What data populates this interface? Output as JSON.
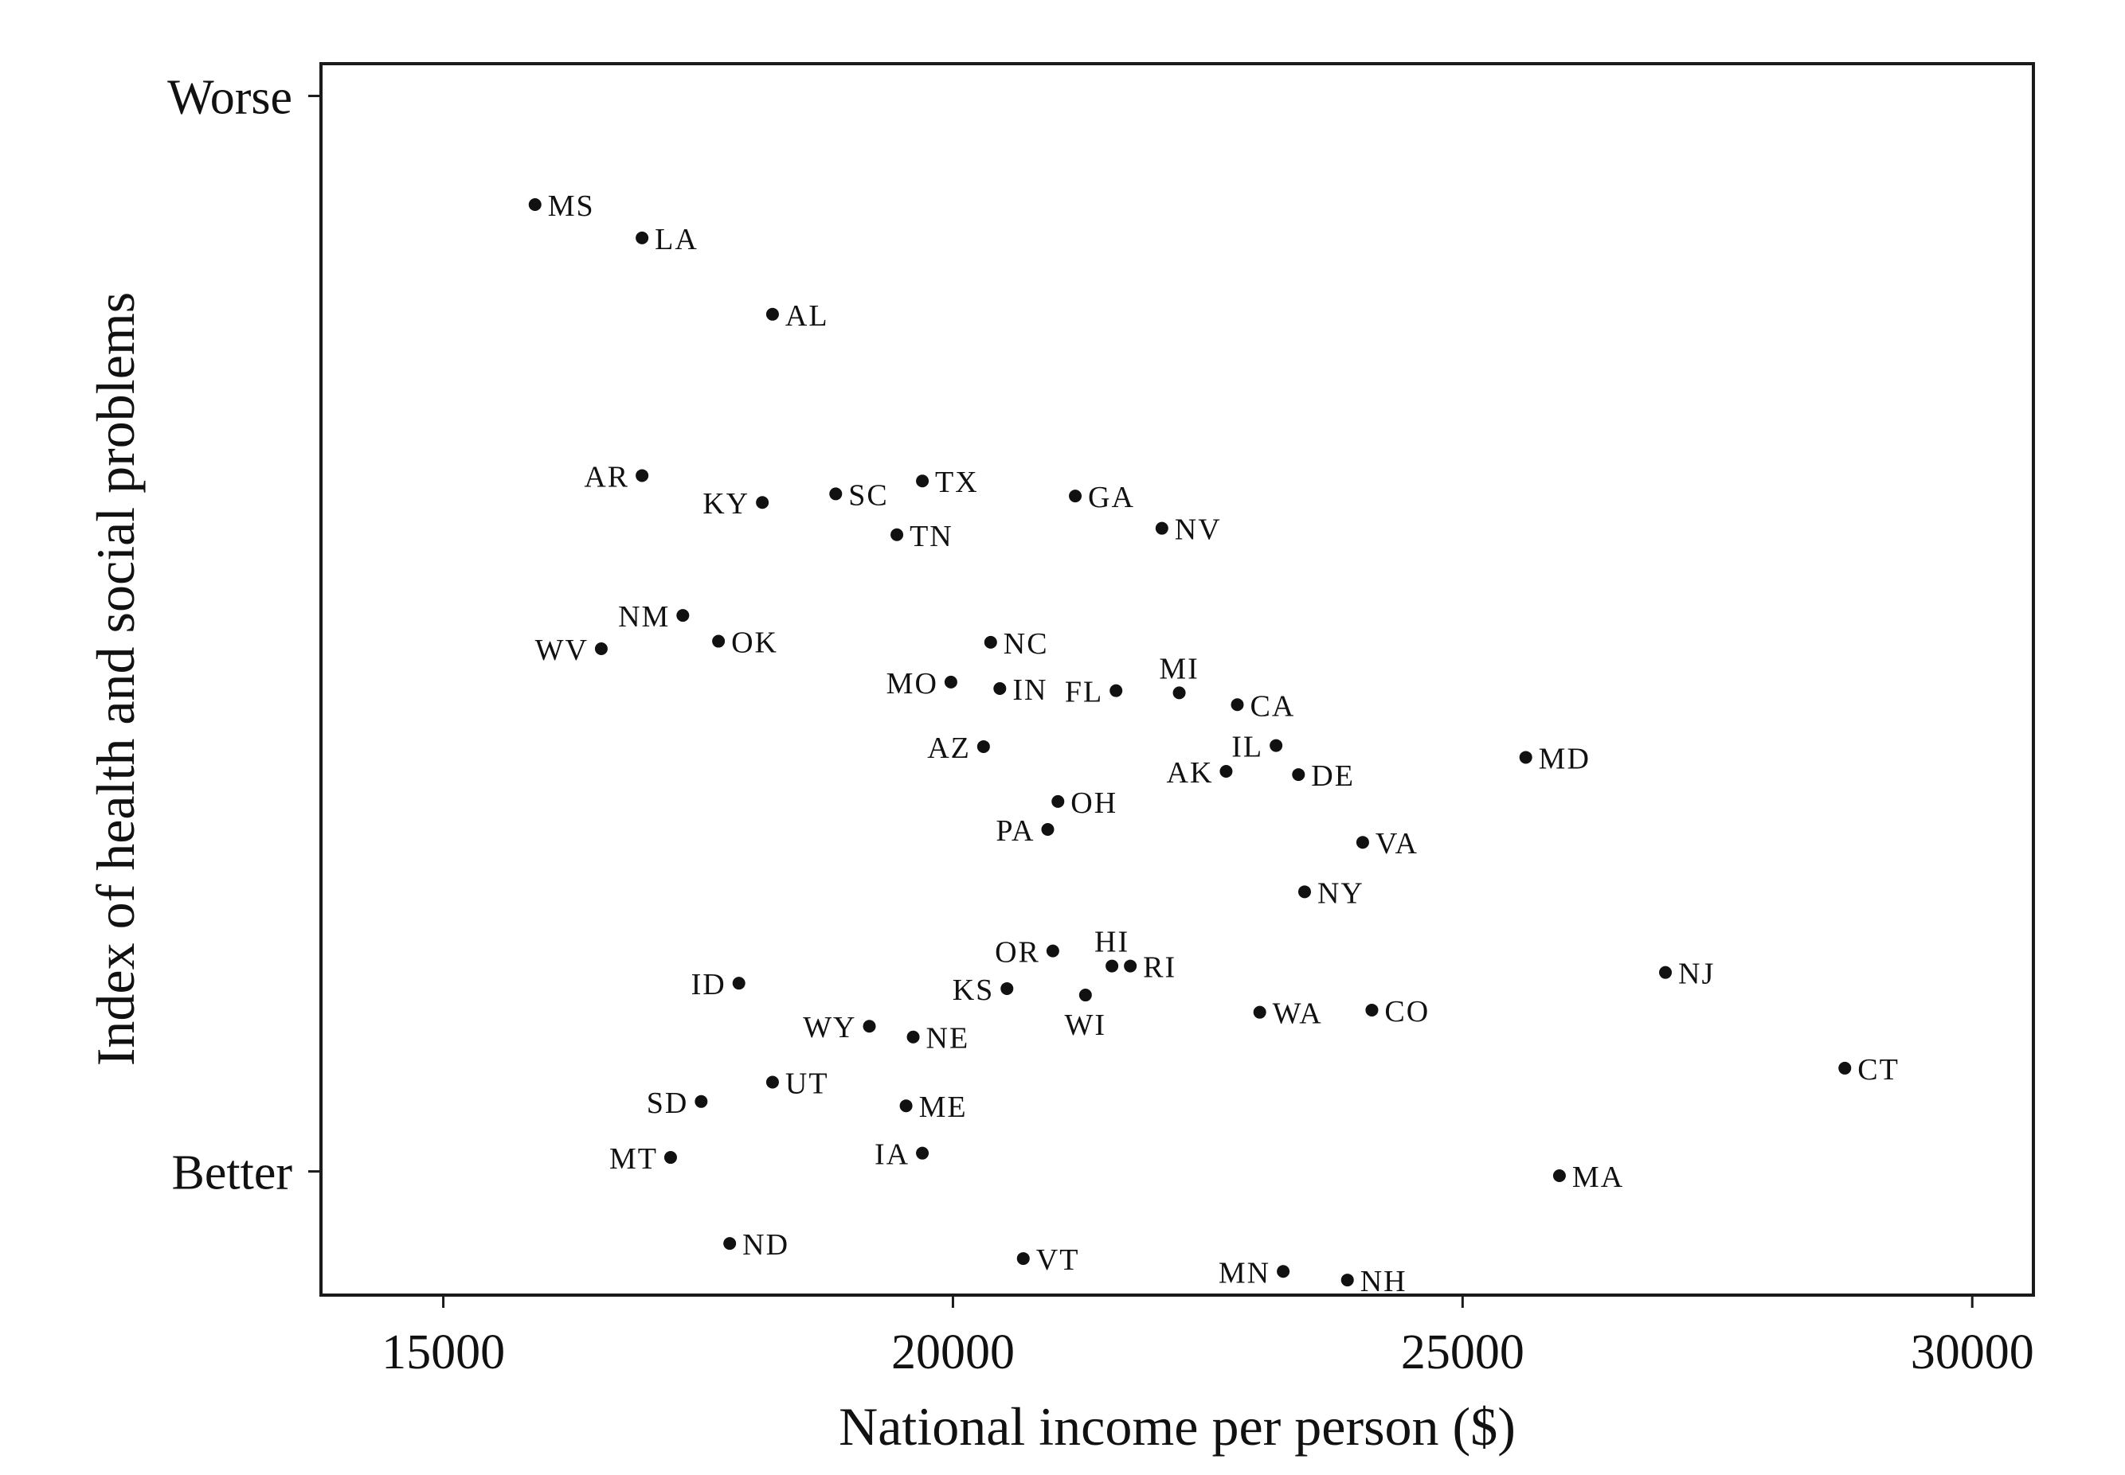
{
  "chart_data": {
    "type": "scatter",
    "xlabel": "National income per person ($)",
    "ylabel": "Index of health and social problems",
    "xlim": [
      13800,
      30600
    ],
    "ylim": [
      -0.115,
      1.03
    ],
    "x_ticks": [
      {
        "value": 15000,
        "label": "15000"
      },
      {
        "value": 20000,
        "label": "20000"
      },
      {
        "value": 25000,
        "label": "25000"
      },
      {
        "value": 30000,
        "label": "30000"
      }
    ],
    "y_ticks": [
      {
        "value": 1,
        "label": "Worse"
      },
      {
        "value": 0,
        "label": "Better"
      }
    ],
    "grid": false,
    "legend": "none",
    "points": [
      {
        "label": "MS",
        "x": 15900,
        "y": 0.899,
        "side": "right"
      },
      {
        "label": "LA",
        "x": 16950,
        "y": 0.868,
        "side": "right"
      },
      {
        "label": "AL",
        "x": 18230,
        "y": 0.797,
        "side": "right"
      },
      {
        "label": "AR",
        "x": 16950,
        "y": 0.647,
        "side": "left"
      },
      {
        "label": "KY",
        "x": 18130,
        "y": 0.622,
        "side": "left"
      },
      {
        "label": "SC",
        "x": 18850,
        "y": 0.63,
        "side": "right"
      },
      {
        "label": "TX",
        "x": 19700,
        "y": 0.642,
        "side": "right"
      },
      {
        "label": "TN",
        "x": 19450,
        "y": 0.592,
        "side": "right"
      },
      {
        "label": "GA",
        "x": 21200,
        "y": 0.628,
        "side": "right"
      },
      {
        "label": "NV",
        "x": 22050,
        "y": 0.598,
        "side": "right"
      },
      {
        "label": "NM",
        "x": 17350,
        "y": 0.517,
        "side": "left"
      },
      {
        "label": "WV",
        "x": 16550,
        "y": 0.486,
        "side": "left"
      },
      {
        "label": "OK",
        "x": 17700,
        "y": 0.493,
        "side": "right"
      },
      {
        "label": "NC",
        "x": 20370,
        "y": 0.492,
        "side": "right"
      },
      {
        "label": "MO",
        "x": 19980,
        "y": 0.455,
        "side": "left"
      },
      {
        "label": "IN",
        "x": 20460,
        "y": 0.449,
        "side": "right"
      },
      {
        "label": "FL",
        "x": 21600,
        "y": 0.447,
        "side": "left"
      },
      {
        "label": "MI",
        "x": 22220,
        "y": 0.445,
        "side": "above"
      },
      {
        "label": "CA",
        "x": 22790,
        "y": 0.434,
        "side": "right"
      },
      {
        "label": "AZ",
        "x": 20300,
        "y": 0.395,
        "side": "left"
      },
      {
        "label": "IL",
        "x": 23170,
        "y": 0.396,
        "side": "left"
      },
      {
        "label": "AK",
        "x": 22680,
        "y": 0.372,
        "side": "left"
      },
      {
        "label": "DE",
        "x": 23390,
        "y": 0.369,
        "side": "right"
      },
      {
        "label": "MD",
        "x": 25620,
        "y": 0.385,
        "side": "right"
      },
      {
        "label": "OH",
        "x": 21030,
        "y": 0.344,
        "side": "right"
      },
      {
        "label": "PA",
        "x": 20930,
        "y": 0.318,
        "side": "left"
      },
      {
        "label": "VA",
        "x": 24020,
        "y": 0.306,
        "side": "right"
      },
      {
        "label": "NY",
        "x": 23450,
        "y": 0.26,
        "side": "right"
      },
      {
        "label": "NJ",
        "x": 26990,
        "y": 0.185,
        "side": "right"
      },
      {
        "label": "OR",
        "x": 20980,
        "y": 0.205,
        "side": "left"
      },
      {
        "label": "HI",
        "x": 21560,
        "y": 0.191,
        "side": "above"
      },
      {
        "label": "RI",
        "x": 21740,
        "y": 0.191,
        "side": "right"
      },
      {
        "label": "ID",
        "x": 17900,
        "y": 0.175,
        "side": "left"
      },
      {
        "label": "KS",
        "x": 20530,
        "y": 0.17,
        "side": "left"
      },
      {
        "label": "WI",
        "x": 21300,
        "y": 0.164,
        "side": "below"
      },
      {
        "label": "WA",
        "x": 23010,
        "y": 0.148,
        "side": "right"
      },
      {
        "label": "CO",
        "x": 24110,
        "y": 0.15,
        "side": "right"
      },
      {
        "label": "WY",
        "x": 19180,
        "y": 0.135,
        "side": "left"
      },
      {
        "label": "NE",
        "x": 19610,
        "y": 0.125,
        "side": "right"
      },
      {
        "label": "CT",
        "x": 28750,
        "y": 0.096,
        "side": "right"
      },
      {
        "label": "UT",
        "x": 18230,
        "y": 0.083,
        "side": "right"
      },
      {
        "label": "SD",
        "x": 17530,
        "y": 0.065,
        "side": "left"
      },
      {
        "label": "ME",
        "x": 19540,
        "y": 0.061,
        "side": "right"
      },
      {
        "label": "MT",
        "x": 17230,
        "y": 0.013,
        "side": "left"
      },
      {
        "label": "IA",
        "x": 19700,
        "y": 0.017,
        "side": "left"
      },
      {
        "label": "MA",
        "x": 25950,
        "y": -0.004,
        "side": "right"
      },
      {
        "label": "ND",
        "x": 17810,
        "y": -0.067,
        "side": "right"
      },
      {
        "label": "VT",
        "x": 20690,
        "y": -0.081,
        "side": "right"
      },
      {
        "label": "MN",
        "x": 23240,
        "y": -0.093,
        "side": "left"
      },
      {
        "label": "NH",
        "x": 23870,
        "y": -0.101,
        "side": "right"
      }
    ]
  }
}
